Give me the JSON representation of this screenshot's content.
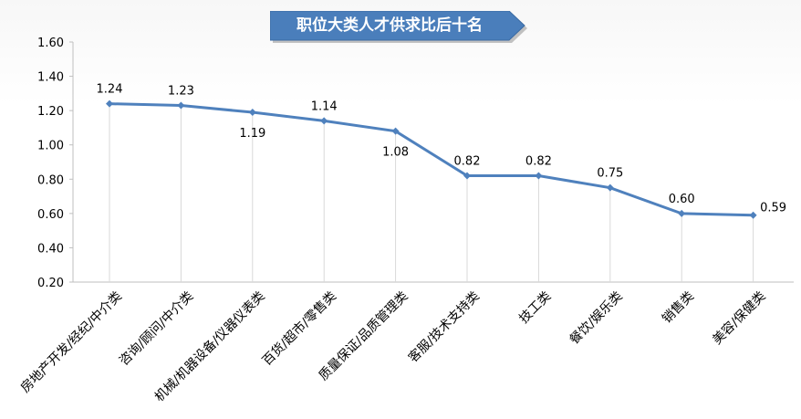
{
  "chart_data": {
    "type": "line",
    "title": "职位大类人才供求比后十名",
    "categories": [
      "房地产开发/经纪/中介类",
      "咨询/顾问/中介类",
      "机械/机器设备/仪器仪表类",
      "百货/超市/零售类",
      "质量保证/品质管理类",
      "客服/技术支持类",
      "技工类",
      "餐饮/娱乐类",
      "销售类",
      "美容/保健类"
    ],
    "values": [
      1.24,
      1.23,
      1.19,
      1.14,
      1.08,
      0.82,
      0.82,
      0.75,
      0.6,
      0.59
    ],
    "data_labels": [
      "1.24",
      "1.23",
      "1.19",
      "1.14",
      "1.08",
      "0.82",
      "0.82",
      "0.75",
      "0.60",
      "0.59"
    ],
    "ylim": [
      0.2,
      1.6
    ],
    "yticks": [
      "0.20",
      "0.40",
      "0.60",
      "0.80",
      "1.00",
      "1.20",
      "1.40",
      "1.60"
    ],
    "xlabel": "",
    "ylabel": "",
    "grid": "vertical drop lines",
    "legend": "none",
    "colors": {
      "line": "#4f81bd",
      "banner": "#4a7ebb",
      "droplines": "#d9d9d9"
    }
  }
}
